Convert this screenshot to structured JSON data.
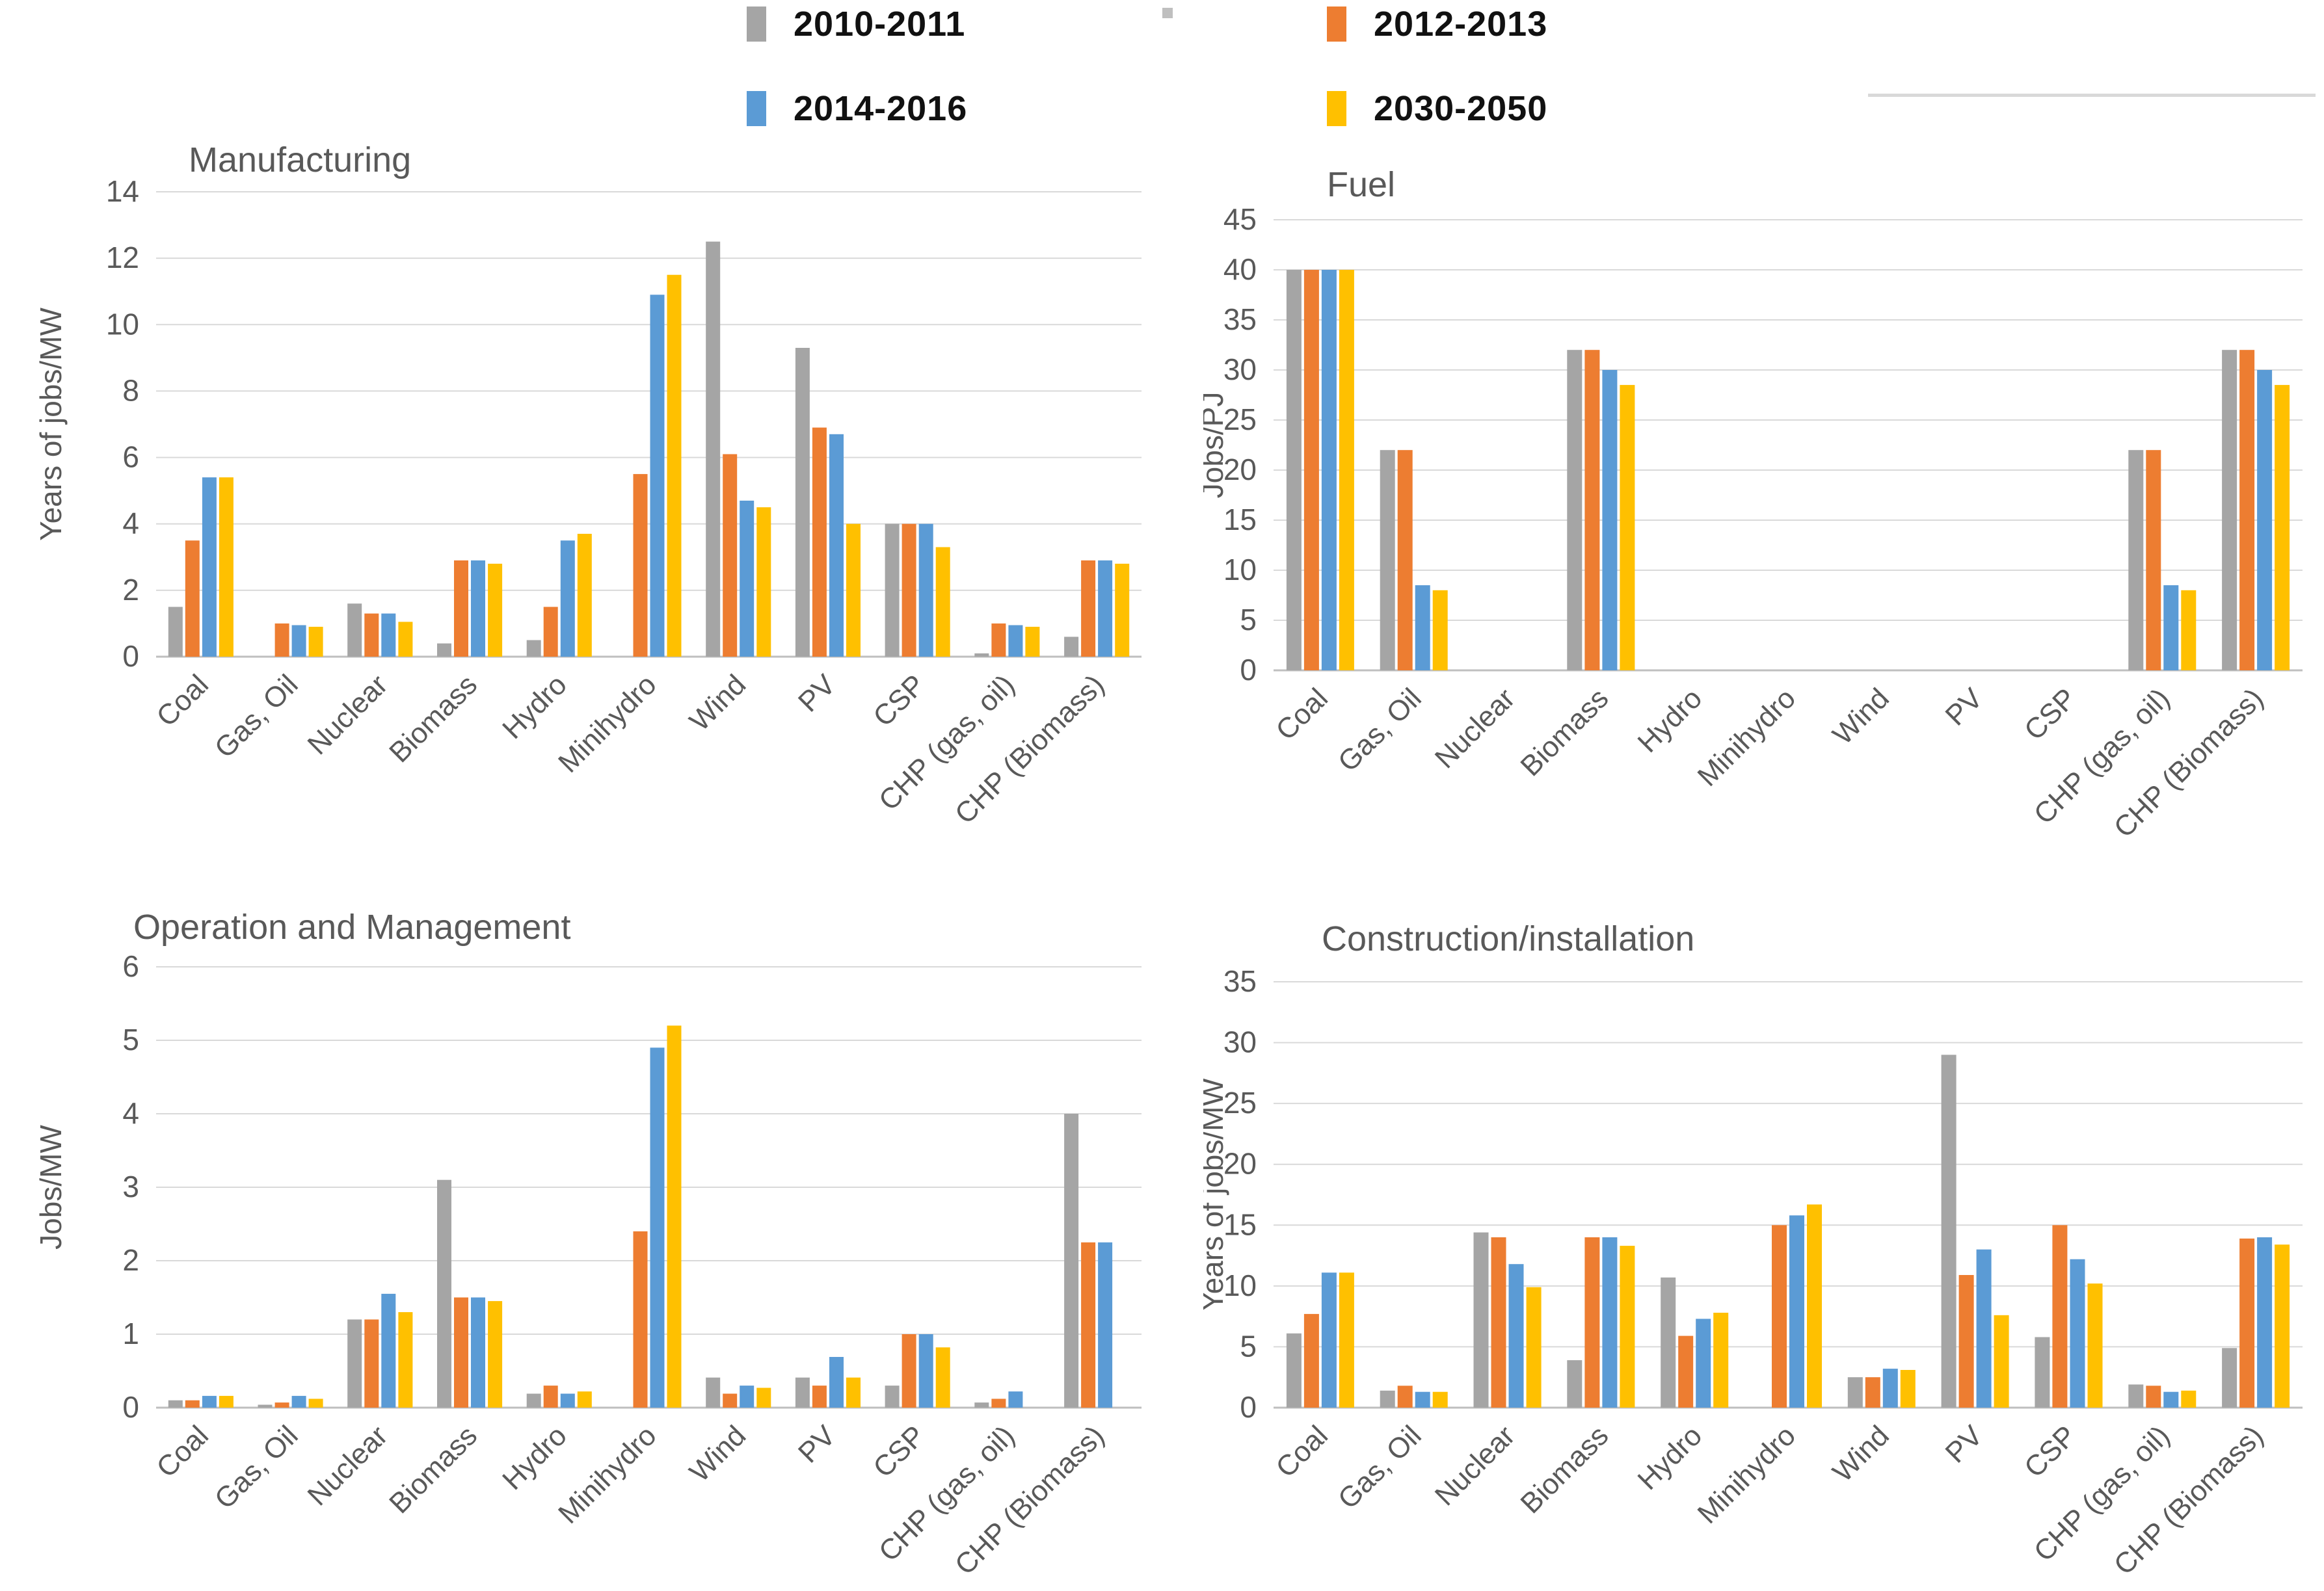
{
  "legend": {
    "items": [
      {
        "label": "2010-2011",
        "color": "#A5A5A5"
      },
      {
        "label": "2012-2013",
        "color": "#ED7D31"
      },
      {
        "label": "2014-2016",
        "color": "#5B9BD5"
      },
      {
        "label": "2030-2050",
        "color": "#FFC000"
      }
    ]
  },
  "colors": {
    "gridline": "#D9D9D9",
    "axis_line": "#BFBFBF",
    "tick_text": "#595959",
    "title_text": "#595959"
  },
  "chart_data": [
    {
      "type": "bar",
      "title": "Manufacturing",
      "ylabel": "Years of jobs/MW",
      "xlabel": "",
      "ylim": [
        0,
        14
      ],
      "ytick": 2,
      "grid": true,
      "legend_position": "top-shared",
      "categories": [
        "Coal",
        "Gas, Oil",
        "Nuclear",
        "Biomass",
        "Hydro",
        "Minihydro",
        "Wind",
        "PV",
        "CSP",
        "CHP (gas, oil)",
        "CHP (Biomass)"
      ],
      "series": [
        {
          "name": "2010-2011",
          "color": "#A5A5A5",
          "values": [
            1.5,
            0,
            1.6,
            0.4,
            0.5,
            0,
            12.5,
            9.3,
            4.0,
            0.1,
            0.6
          ]
        },
        {
          "name": "2012-2013",
          "color": "#ED7D31",
          "values": [
            3.5,
            1.0,
            1.3,
            2.9,
            1.5,
            5.5,
            6.1,
            6.9,
            4.0,
            1.0,
            2.9
          ]
        },
        {
          "name": "2014-2016",
          "color": "#5B9BD5",
          "values": [
            5.4,
            0.95,
            1.3,
            2.9,
            3.5,
            10.9,
            4.7,
            6.7,
            4.0,
            0.95,
            2.9
          ]
        },
        {
          "name": "2030-2050",
          "color": "#FFC000",
          "values": [
            5.4,
            0.9,
            1.05,
            2.8,
            3.7,
            11.5,
            4.5,
            4.0,
            3.3,
            0.9,
            2.8
          ]
        }
      ]
    },
    {
      "type": "bar",
      "title": "Fuel",
      "ylabel": "Jobs/PJ",
      "xlabel": "",
      "ylim": [
        0,
        45
      ],
      "ytick": 5,
      "grid": true,
      "legend_position": "top-shared",
      "categories": [
        "Coal",
        "Gas, Oil",
        "Nuclear",
        "Biomass",
        "Hydro",
        "Minihydro",
        "Wind",
        "PV",
        "CSP",
        "CHP (gas, oil)",
        "CHP (Biomass)"
      ],
      "series": [
        {
          "name": "2010-2011",
          "color": "#A5A5A5",
          "values": [
            40,
            22,
            0,
            32,
            0,
            0,
            0,
            0,
            0,
            22,
            32
          ]
        },
        {
          "name": "2012-2013",
          "color": "#ED7D31",
          "values": [
            40,
            22,
            0,
            32,
            0,
            0,
            0,
            0,
            0,
            22,
            32
          ]
        },
        {
          "name": "2014-2016",
          "color": "#5B9BD5",
          "values": [
            40,
            8.5,
            0,
            30,
            0,
            0,
            0,
            0,
            0,
            8.5,
            30
          ]
        },
        {
          "name": "2030-2050",
          "color": "#FFC000",
          "values": [
            40,
            8,
            0,
            28.5,
            0,
            0,
            0,
            0,
            0,
            8,
            28.5
          ]
        }
      ]
    },
    {
      "type": "bar",
      "title": "Operation and Management",
      "ylabel": "Jobs/MW",
      "xlabel": "",
      "ylim": [
        0,
        6
      ],
      "ytick": 1,
      "grid": true,
      "legend_position": "top-shared",
      "categories": [
        "Coal",
        "Gas, Oil",
        "Nuclear",
        "Biomass",
        "Hydro",
        "Minihydro",
        "Wind",
        "PV",
        "CSP",
        "CHP (gas, oil)",
        "CHP (Biomass)"
      ],
      "series": [
        {
          "name": "2010-2011",
          "color": "#A5A5A5",
          "values": [
            0.1,
            0.04,
            1.2,
            3.1,
            0.19,
            0,
            0.41,
            0.41,
            0.3,
            0.07,
            4.0
          ]
        },
        {
          "name": "2012-2013",
          "color": "#ED7D31",
          "values": [
            0.1,
            0.07,
            1.2,
            1.5,
            0.3,
            2.4,
            0.19,
            0.3,
            1.0,
            0.12,
            2.25
          ]
        },
        {
          "name": "2014-2016",
          "color": "#5B9BD5",
          "values": [
            0.16,
            0.16,
            1.55,
            1.5,
            0.19,
            4.9,
            0.3,
            0.69,
            1.0,
            0.22,
            2.25
          ]
        },
        {
          "name": "2030-2050",
          "color": "#FFC000",
          "values": [
            0.16,
            0.12,
            1.3,
            1.45,
            0.22,
            5.2,
            0.27,
            0.41,
            0.82,
            0,
            0
          ]
        }
      ]
    },
    {
      "type": "bar",
      "title": "Construction/installation",
      "ylabel": "Years of jobs/MW",
      "xlabel": "",
      "ylim": [
        0,
        35
      ],
      "ytick": 5,
      "grid": true,
      "legend_position": "top-shared",
      "categories": [
        "Coal",
        "Gas, Oil",
        "Nuclear",
        "Biomass",
        "Hydro",
        "Minihydro",
        "Wind",
        "PV",
        "CSP",
        "CHP (gas, oil)",
        "CHP (Biomass)"
      ],
      "series": [
        {
          "name": "2010-2011",
          "color": "#A5A5A5",
          "values": [
            6.1,
            1.4,
            14.4,
            3.9,
            10.7,
            0,
            2.5,
            29,
            5.8,
            1.9,
            4.9
          ]
        },
        {
          "name": "2012-2013",
          "color": "#ED7D31",
          "values": [
            7.7,
            1.8,
            14.0,
            14.0,
            5.9,
            15.0,
            2.5,
            10.9,
            15.0,
            1.8,
            13.9
          ]
        },
        {
          "name": "2014-2016",
          "color": "#5B9BD5",
          "values": [
            11.1,
            1.3,
            11.8,
            14.0,
            7.3,
            15.8,
            3.2,
            13.0,
            12.2,
            1.3,
            14.0
          ]
        },
        {
          "name": "2030-2050",
          "color": "#FFC000",
          "values": [
            11.1,
            1.3,
            9.9,
            13.3,
            7.8,
            16.7,
            3.1,
            7.6,
            10.2,
            1.4,
            13.4
          ]
        }
      ]
    }
  ]
}
